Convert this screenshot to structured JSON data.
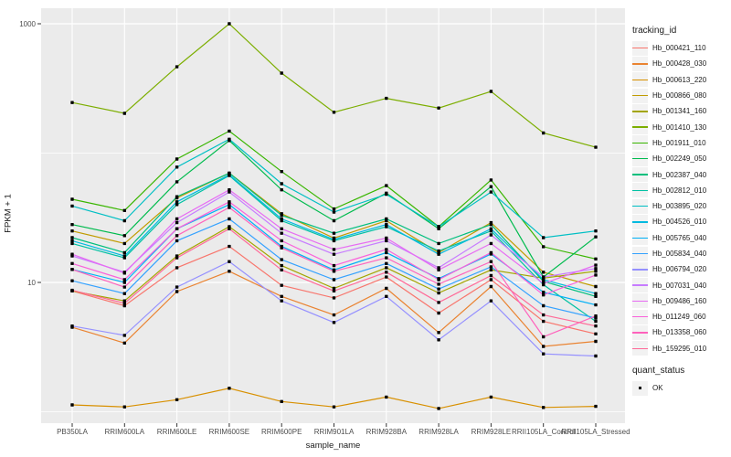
{
  "chart_data": {
    "type": "line",
    "title": "",
    "xlabel": "sample_name",
    "ylabel": "FPKM + 1",
    "y_scale": "log10",
    "grid": true,
    "legend_position": "right",
    "y_axis": {
      "tick_values": [
        10,
        1000
      ],
      "tick_labels": [
        "10",
        "1000"
      ],
      "minor_gridline_values": [
        1,
        100
      ],
      "range_approx": [
        0.83,
        1300
      ]
    },
    "categories": [
      "PB350LA",
      "RRIM600LA",
      "RRIM600LE",
      "RRIM600SE",
      "RRIM600PE",
      "RRIM901LA",
      "RRIM928BA",
      "RRIM928LA",
      "RRIM928LE",
      "RRII105LA_Control",
      "RRII105LA_Stressed"
    ],
    "legend_title": "tracking_id",
    "series": [
      {
        "name": "Hb_000421_110",
        "color": "#F8766D",
        "values": [
          8.6,
          6.6,
          13,
          19,
          9.5,
          7.6,
          11,
          5.8,
          10.5,
          5,
          4
        ]
      },
      {
        "name": "Hb_000428_030",
        "color": "#EA8331",
        "values": [
          4.5,
          3.4,
          8.5,
          12.2,
          7.8,
          5.6,
          9,
          4.1,
          9.3,
          3.2,
          3.5
        ]
      },
      {
        "name": "Hb_000613_220",
        "color": "#D89000",
        "values": [
          1.13,
          1.09,
          1.24,
          1.52,
          1.2,
          1.09,
          1.3,
          1.06,
          1.3,
          1.08,
          1.1
        ]
      },
      {
        "name": "Hb_000866_080",
        "color": "#C09B00",
        "values": [
          25,
          20,
          45,
          70,
          34,
          22,
          30,
          17,
          29,
          12,
          9.3
        ]
      },
      {
        "name": "Hb_001341_160",
        "color": "#A3A500",
        "values": [
          8.6,
          7.2,
          16,
          27,
          13.5,
          9,
          13,
          8.3,
          12.5,
          10.8,
          12.2
        ]
      },
      {
        "name": "Hb_001410_130",
        "color": "#7CAE00",
        "values": [
          246,
          203,
          465,
          1000,
          415,
          207,
          265,
          223,
          300,
          143,
          111
        ]
      },
      {
        "name": "Hb_001911_010",
        "color": "#39B600",
        "values": [
          44,
          36,
          90,
          148,
          72,
          37,
          56,
          27,
          62,
          18.9,
          15.2
        ]
      },
      {
        "name": "Hb_002249_050",
        "color": "#00BB4E",
        "values": [
          28,
          23,
          60,
          125,
          52,
          30,
          49,
          26,
          55,
          11,
          22.5
        ]
      },
      {
        "name": "Hb_002387_040",
        "color": "#00BF7D",
        "values": [
          22.2,
          17,
          46,
          70,
          33,
          24,
          31,
          20,
          28,
          10.2,
          7.8
        ]
      },
      {
        "name": "Hb_002812_010",
        "color": "#00C1A3",
        "values": [
          20,
          15.5,
          40,
          67,
          30,
          21,
          27,
          17.5,
          25,
          9.6,
          5
        ]
      },
      {
        "name": "Hb_003895_020",
        "color": "#00BFC4",
        "values": [
          39,
          30,
          78,
          128,
          58,
          35,
          48,
          27,
          50,
          22.2,
          25
        ]
      },
      {
        "name": "Hb_004526_010",
        "color": "#00BAE0",
        "values": [
          21,
          16,
          42,
          68,
          31,
          21.5,
          28,
          16.5,
          26,
          10.5,
          8.2
        ]
      },
      {
        "name": "Hb_005765_040",
        "color": "#00B0F6",
        "values": [
          12.6,
          10,
          26,
          40,
          19,
          12.5,
          17,
          10.7,
          16.6,
          8.4,
          6.7
        ]
      },
      {
        "name": "Hb_005834_040",
        "color": "#35A2FF",
        "values": [
          10.3,
          8.2,
          21,
          31,
          15,
          10.5,
          14,
          8.9,
          13.2,
          6.6,
          5.3
        ]
      },
      {
        "name": "Hb_006794_020",
        "color": "#9590FF",
        "values": [
          4.6,
          3.9,
          9.2,
          14.5,
          7.2,
          4.9,
          7.8,
          3.6,
          7.2,
          2.8,
          2.7
        ]
      },
      {
        "name": "Hb_007031_040",
        "color": "#C77CFF",
        "values": [
          16,
          12,
          29,
          50,
          24,
          16.5,
          21,
          13,
          23.3,
          11,
          12.8
        ]
      },
      {
        "name": "Hb_009486_160",
        "color": "#E76BF3",
        "values": [
          16.5,
          11.8,
          31,
          52,
          26,
          18,
          22,
          12.5,
          20,
          9.8,
          13.6
        ]
      },
      {
        "name": "Hb_011249_060",
        "color": "#FA62DB",
        "values": [
          14,
          10.5,
          26,
          42,
          21,
          13.5,
          18,
          10.5,
          17,
          8,
          11.4
        ]
      },
      {
        "name": "Hb_013358_060",
        "color": "#FF62BC",
        "values": [
          12.6,
          9.2,
          23,
          38,
          18.5,
          12.2,
          15.5,
          9.7,
          14.5,
          3.8,
          5.5
        ]
      },
      {
        "name": "Hb_159295_010",
        "color": "#FF6A98",
        "values": [
          8.7,
          6.9,
          15.5,
          26,
          12.5,
          8.6,
          12,
          7,
          11.3,
          5.6,
          4.6
        ]
      }
    ],
    "quant_status": {
      "title": "quant_status",
      "items": [
        {
          "label": "OK"
        }
      ]
    }
  },
  "colors": {
    "panel_bg": "#EBEBEB",
    "gridline": "#FFFFFF",
    "tick_mark": "#333333",
    "tick_label": "#4D4D4D",
    "text": "#1A1A1A",
    "point": "#000000",
    "legend_key_bg": "#F2F2F2"
  }
}
